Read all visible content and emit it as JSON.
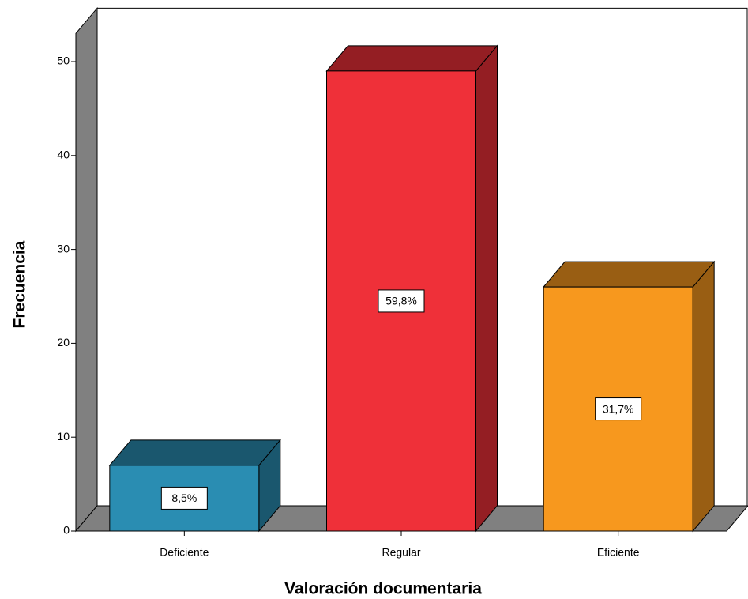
{
  "chart_data": {
    "type": "bar3d",
    "x_label": "Valoración documentaria",
    "y_label": "Frecuencia",
    "categories": [
      "Deficiente",
      "Regular",
      "Eficiente"
    ],
    "values": [
      7,
      49,
      26
    ],
    "percent_labels": [
      "8,5%",
      "59,8%",
      "31,7%"
    ],
    "colors": [
      "#2a8db2",
      "#ef3039",
      "#f7981e"
    ],
    "ylim": [
      0,
      53
    ],
    "yticks": [
      0,
      10,
      20,
      30,
      40,
      50
    ]
  }
}
